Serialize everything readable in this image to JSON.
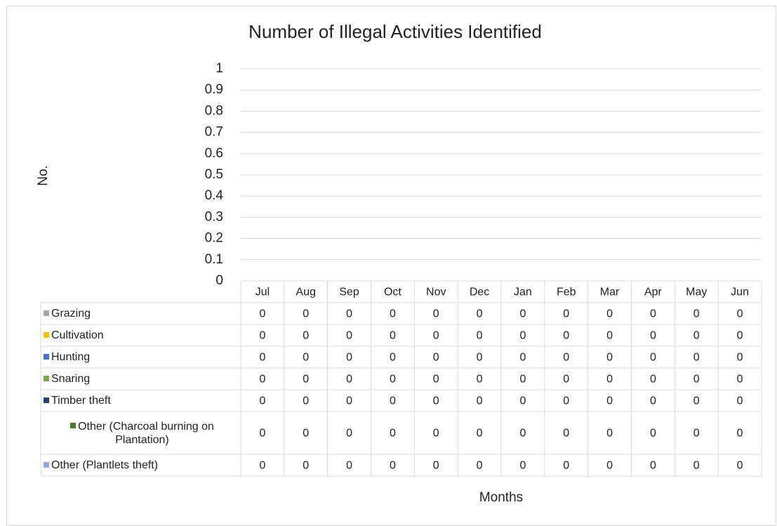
{
  "chart_data": {
    "type": "bar",
    "stacked": true,
    "title": "Number of Illegal Activities Identified",
    "y_label": "No.",
    "x_label": "Months",
    "categories": [
      "Jul",
      "Aug",
      "Sep",
      "Oct",
      "Nov",
      "Dec",
      "Jan",
      "Feb",
      "Mar",
      "Apr",
      "May",
      "Jun"
    ],
    "series": [
      {
        "name": "Grazing",
        "color": "#a5a5a5",
        "values": [
          0,
          0,
          0,
          0,
          0,
          0,
          0,
          0,
          0,
          0,
          0,
          0
        ]
      },
      {
        "name": "Cultivation",
        "color": "#ffc000",
        "values": [
          0,
          0,
          0,
          0,
          0,
          0,
          0,
          0,
          0,
          0,
          0,
          0
        ]
      },
      {
        "name": "Hunting",
        "color": "#4472c4",
        "values": [
          0,
          0,
          0,
          0,
          0,
          0,
          0,
          0,
          0,
          0,
          0,
          0
        ]
      },
      {
        "name": "Snaring",
        "color": "#70ad47",
        "values": [
          0,
          0,
          0,
          0,
          0,
          0,
          0,
          0,
          0,
          0,
          0,
          0
        ]
      },
      {
        "name": "Timber theft",
        "color": "#264478",
        "values": [
          0,
          0,
          0,
          0,
          0,
          0,
          0,
          0,
          0,
          0,
          0,
          0
        ]
      },
      {
        "name": "Other (Charcoal burning on Plantation)",
        "color": "#43802b",
        "values": [
          0,
          0,
          0,
          0,
          0,
          0,
          0,
          0,
          0,
          0,
          0,
          0
        ]
      },
      {
        "name": "Other (Plantlets theft)",
        "color": "#8faadc",
        "values": [
          0,
          0,
          0,
          0,
          0,
          0,
          0,
          0,
          0,
          0,
          0,
          0
        ]
      }
    ],
    "ylim": [
      0,
      1
    ],
    "yticks": [
      0,
      0.1,
      0.2,
      0.3,
      0.4,
      0.5,
      0.6,
      0.7,
      0.8,
      0.9,
      1
    ],
    "grid": true
  }
}
